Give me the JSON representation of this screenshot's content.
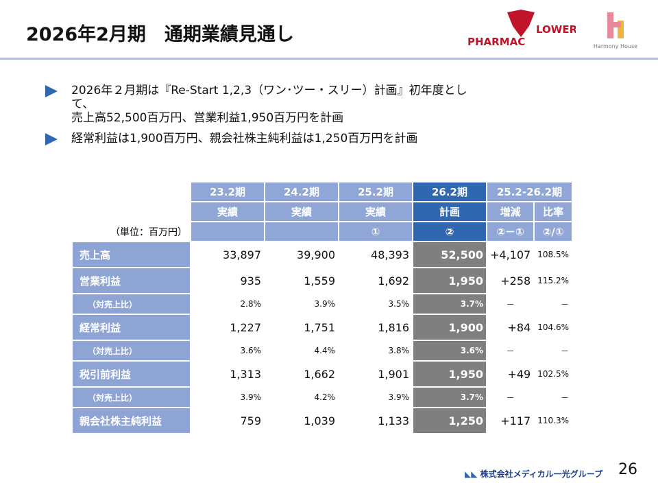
{
  "header": {
    "title": "2026年2月期　通期業績見通し",
    "logo_left": "PHARMAC",
    "logo_right": "LOWER",
    "logo_house": "Harmony House"
  },
  "bullets": [
    [
      "2026年２月期は『Re-Start 1,2,3（ワン･ツー・スリー）計画』初年度とし",
      "て、",
      "売上高52,500百万円、営業利益1,950百万円を計画"
    ],
    [
      "経常利益は1,900百万円、親会社株主純利益は1,250百万円を計画"
    ]
  ],
  "table": {
    "unit": "（単位：百万円）",
    "group_label": "25.2-26.2期",
    "columns": [
      {
        "period": "23.2期",
        "kind": "実績"
      },
      {
        "period": "24.2期",
        "kind": "実績"
      },
      {
        "period": "25.2期",
        "kind": "実績",
        "marker": "①"
      },
      {
        "period": "26.2期",
        "kind": "計画",
        "marker": "②"
      },
      {
        "kind": "増減",
        "marker": "②－①"
      },
      {
        "kind": "比率",
        "marker": "②/①"
      }
    ],
    "rows": [
      {
        "label": "売上高",
        "cells": [
          "33,897",
          "39,900",
          "48,393",
          "52,500",
          "+4,107",
          "108.5%"
        ]
      },
      {
        "label": "営業利益",
        "cells": [
          "935",
          "1,559",
          "1,692",
          "1,950",
          "+258",
          "115.2%"
        ]
      },
      {
        "label": "（対売上比）",
        "sub": true,
        "cells": [
          "2.8%",
          "3.9%",
          "3.5%",
          "3.7%",
          "－",
          "－"
        ]
      },
      {
        "label": "経常利益",
        "cells": [
          "1,227",
          "1,751",
          "1,816",
          "1,900",
          "+84",
          "104.6%"
        ]
      },
      {
        "label": "（対売上比）",
        "sub": true,
        "cells": [
          "3.6%",
          "4.4%",
          "3.8%",
          "3.6%",
          "－",
          "－"
        ]
      },
      {
        "label": "税引前利益",
        "cells": [
          "1,313",
          "1,662",
          "1,901",
          "1,950",
          "+49",
          "102.5%"
        ]
      },
      {
        "label": "（対売上比）",
        "sub": true,
        "cells": [
          "3.9%",
          "4.2%",
          "3.9%",
          "3.7%",
          "－",
          "－"
        ]
      },
      {
        "label": "親会社株主純利益",
        "cells": [
          "759",
          "1,039",
          "1,133",
          "1,250",
          "+117",
          "110.3%"
        ]
      }
    ]
  },
  "footer": {
    "company": "株式会社メディカル一光グループ",
    "page": "26"
  }
}
